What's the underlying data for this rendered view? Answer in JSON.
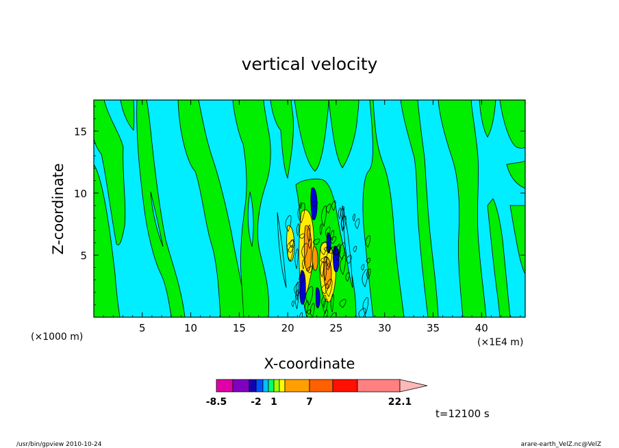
{
  "chart_data": {
    "type": "heatmap",
    "title": "vertical velocity",
    "xlabel": "X-coordinate",
    "ylabel": "Z-coordinate",
    "x_unit_left": "(×1000 m)",
    "x_unit_right": "(×1E4 m)",
    "xlim": [
      0,
      44.5
    ],
    "ylim": [
      0,
      17.5
    ],
    "x_ticks": [
      "5",
      "10",
      "15",
      "20",
      "25",
      "30",
      "35",
      "40"
    ],
    "y_ticks": [
      "5",
      "10",
      "15"
    ],
    "colorbar": {
      "tick_labels": [
        "-8.5",
        "-2",
        "1",
        "7",
        "22.1"
      ],
      "colors": [
        "#e000a8",
        "#8000c0",
        "#1400b0",
        "#0050ff",
        "#00c0ff",
        "#00ff70",
        "#a0ff00",
        "#ffff00",
        "#ffa000",
        "#ff6000",
        "#ff1000",
        "#ff8080",
        "#ffb8b8"
      ]
    },
    "field_colors": {
      "background": "#00eeff",
      "positive": "#00ee00",
      "updraft": "#ffee00",
      "strong_updraft": "#ff9900",
      "downdraft": "#0000dd"
    },
    "time_label": "t=12100 s"
  },
  "footer": {
    "left": "/usr/bin/gpview  2010-10-24",
    "right": "arare-earth_VelZ.nc@VelZ"
  }
}
